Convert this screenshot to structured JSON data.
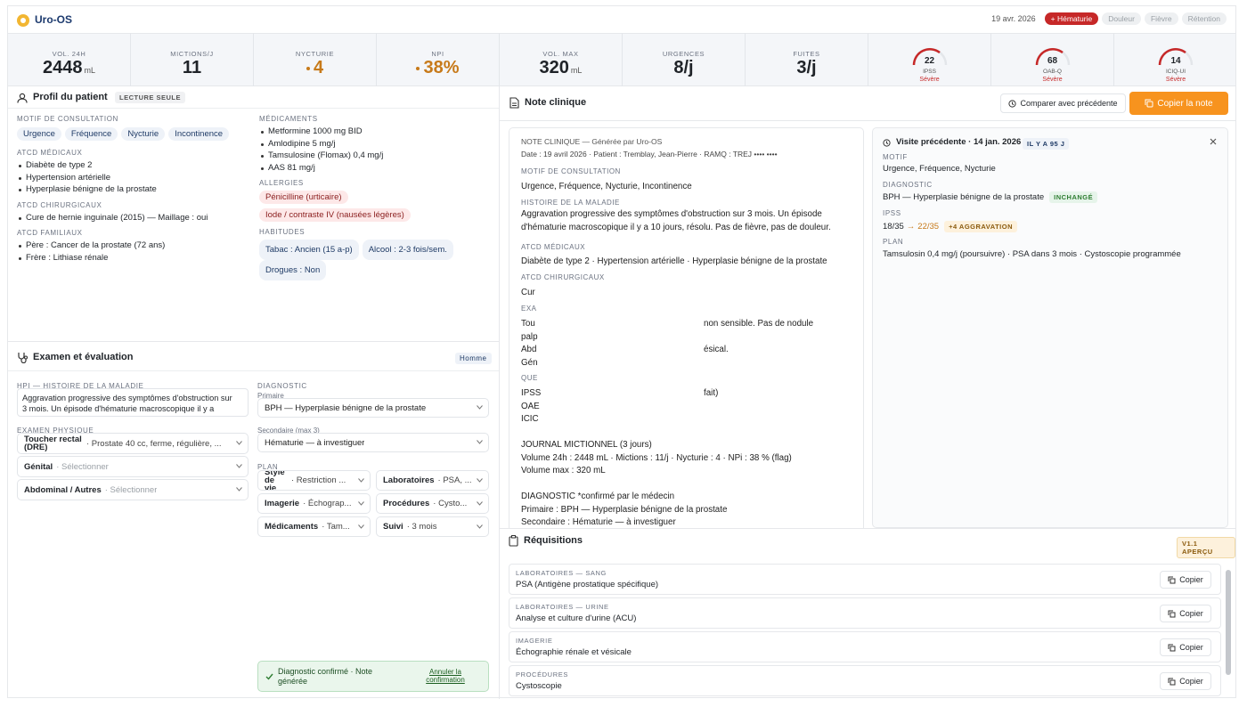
{
  "header": {
    "app_name": "Uro-OS",
    "date": "19 avr. 2026",
    "flags": [
      "+ Hématurie",
      "Douleur",
      "Fièvre",
      "Rétention"
    ]
  },
  "metrics": [
    {
      "label": "VOL. 24H",
      "value": 2448,
      "unit": "mL"
    },
    {
      "label": "MICTIONS/J",
      "value": 11
    },
    {
      "label": "NYCTURIE",
      "value": 4
    },
    {
      "label": "NPI",
      "value": "38%"
    },
    {
      "label": "VOL. MAX",
      "value": 320,
      "unit": "mL"
    },
    {
      "label": "URGENCES",
      "value": "8/j"
    },
    {
      "label": "FUITES",
      "value": "3/j"
    }
  ],
  "scores": [
    {
      "label": "IPSS",
      "value": 22,
      "severity": "Sévère"
    },
    {
      "label": "OAB-Q",
      "value": 68,
      "severity": "Sévère"
    },
    {
      "label": "ICIQ-UI",
      "value": 14,
      "severity": "Sévère"
    }
  ],
  "profile": {
    "title": "Profil du patient",
    "badge": "LECTURE SEULE",
    "reason": {
      "label": "MOTIF DE CONSULTATION",
      "items": [
        "Urgence",
        "Fréquence",
        "Nycturie",
        "Incontinence"
      ]
    },
    "medical": {
      "label": "ATCD MÉDICAUX",
      "items": [
        "Diabète de type 2",
        "Hypertension artérielle",
        "Hyperplasie bénigne de la prostate"
      ]
    },
    "surgical": {
      "label": "ATCD CHIRURGICAUX",
      "items": [
        "Cure de hernie inguinale (2015) — Maillage : oui"
      ]
    },
    "family": {
      "label": "ATCD FAMILIAUX",
      "items": [
        "Père : Cancer de la prostate (72 ans)",
        "Frère : Lithiase rénale"
      ]
    },
    "meds": {
      "label": "MÉDICAMENTS",
      "items": [
        "Metformine 1000 mg BID",
        "Amlodipine 5 mg/j",
        "Tamsulosine (Flomax) 0,4 mg/j",
        "AAS 81 mg/j"
      ]
    },
    "allergies": {
      "label": "ALLERGIES",
      "items": [
        "Pénicilline (urticaire)",
        "Iode / contraste IV (nausées légères)"
      ]
    },
    "habits": {
      "label": "HABITUDES",
      "items": [
        "Tabac : Ancien (15 a-p)",
        "Alcool : 2-3 fois/sem.",
        "Drogues : Non"
      ]
    }
  },
  "exam": {
    "title": "Examen et évaluation",
    "badge": "Homme",
    "hpi": {
      "label": "HPI — HISTOIRE DE LA MALADIE",
      "text": "Aggravation progressive des symptômes d'obstruction sur 3 mois. Un épisode d'hématurie macroscopique il y a"
    },
    "physical": {
      "label": "EXAMEN PHYSIQUE",
      "rows": [
        {
          "name": "Toucher rectal (DRE)",
          "value": "· Prostate 40 cc, ferme, régulière, ..."
        },
        {
          "name": "Génital",
          "value": "· Sélectionner"
        },
        {
          "name": "Abdominal / Autres",
          "value": "· Sélectionner"
        }
      ]
    },
    "diagnosis": {
      "label": "DIAGNOSTIC",
      "primary_label": "Primaire",
      "primary": "BPH — Hyperplasie bénigne de la prostate",
      "secondary_label": "Secondaire (max 3)",
      "secondary": "Hématurie — à investiguer"
    },
    "plan": {
      "label": "PLAN",
      "items": [
        {
          "name": "Style de vie",
          "value": "· Restriction ..."
        },
        {
          "name": "Laboratoires",
          "value": "· PSA, ..."
        },
        {
          "name": "Imagerie",
          "value": "· Échograp..."
        },
        {
          "name": "Procédures",
          "value": "· Cysto..."
        },
        {
          "name": "Médicaments",
          "value": "· Tam..."
        },
        {
          "name": "Suivi",
          "value": "· 3 mois"
        }
      ]
    },
    "confirmation": {
      "text": "Diagnostic confirmé · Note générée",
      "action": "Annuler la confirmation"
    }
  },
  "note": {
    "title": "Note clinique",
    "compare_button": "Comparer avec précédente",
    "copy_button": "Copier la note",
    "lines": [
      "NOTE CLINIQUE — Générée par Uro-OS",
      "Date : 19 avril 2026 · Patient : Tremblay, Jean-Pierre · RAMQ : TREJ •••• ••••",
      "MOTIF DE CONSULTATION",
      "Urgence, Fréquence, Nycturie, Incontinence",
      "HISTOIRE DE LA MALADIE",
      "Aggravation progressive des symptômes d'obstruction sur 3 mois. Un épisode d'hématurie macroscopique il y a 10 jours, résolu. Pas de fièvre, pas de douleur.",
      "ATCD MÉDICAUX",
      "Diabète de type 2 · Hypertension artérielle · Hyperplasie bénigne de la prostate",
      "ATCD CHIRURGICAUX",
      "Cur",
      "EXA",
      "Tou",
      "non sensible. Pas de nodule",
      "palp",
      "Abd",
      "ésical.",
      "Gén",
      "QUE",
      "IPSS",
      "fait)",
      "OAE",
      "ICIC",
      "JOURNAL MICTIONNEL (3 jours)",
      "Volume 24h : 2448 mL · Mictions : 11/j · Nycturie : 4 · NPi : 38 % (flag)",
      "Volume max : 320 mL",
      "DIAGNOSTIC *confirmé par le médecin",
      "Primaire : BPH — Hyperplasie bénigne de la prostate",
      "Secondaire : Hématurie — à investiguer"
    ]
  },
  "previous": {
    "title": "Visite précédente · 14 jan. 2026",
    "badge": "IL Y A 95 J",
    "motif": {
      "label": "MOTIF",
      "text": "Urgence, Fréquence, Nycturie"
    },
    "diagnosis": {
      "label": "DIAGNOSTIC",
      "text": "BPH — Hyperplasie bénigne de la prostate",
      "badge": "INCHANGÉ"
    },
    "ipss": {
      "label": "IPSS",
      "from": "18/35",
      "arrow": "→",
      "to": "22/35",
      "badge": "+4 AGGRAVATION"
    },
    "plan": {
      "label": "PLAN",
      "text": "Tamsulosin 0,4 mg/j (poursuivre) · PSA dans 3 mois · Cystoscopie programmée"
    }
  },
  "requisitions": {
    "title": "Réquisitions",
    "badge": "V1.1 APERÇU",
    "copy_button": "Copier",
    "items": [
      {
        "category": "LABORATOIRES — SANG",
        "name": "PSA (Antigène prostatique spécifique)"
      },
      {
        "category": "LABORATOIRES — URINE",
        "name": "Analyse et culture d'urine (ACU)"
      },
      {
        "category": "IMAGERIE",
        "name": "Échographie rénale et vésicale"
      },
      {
        "category": "PROCÉDURES",
        "name": "Cystoscopie"
      }
    ]
  }
}
